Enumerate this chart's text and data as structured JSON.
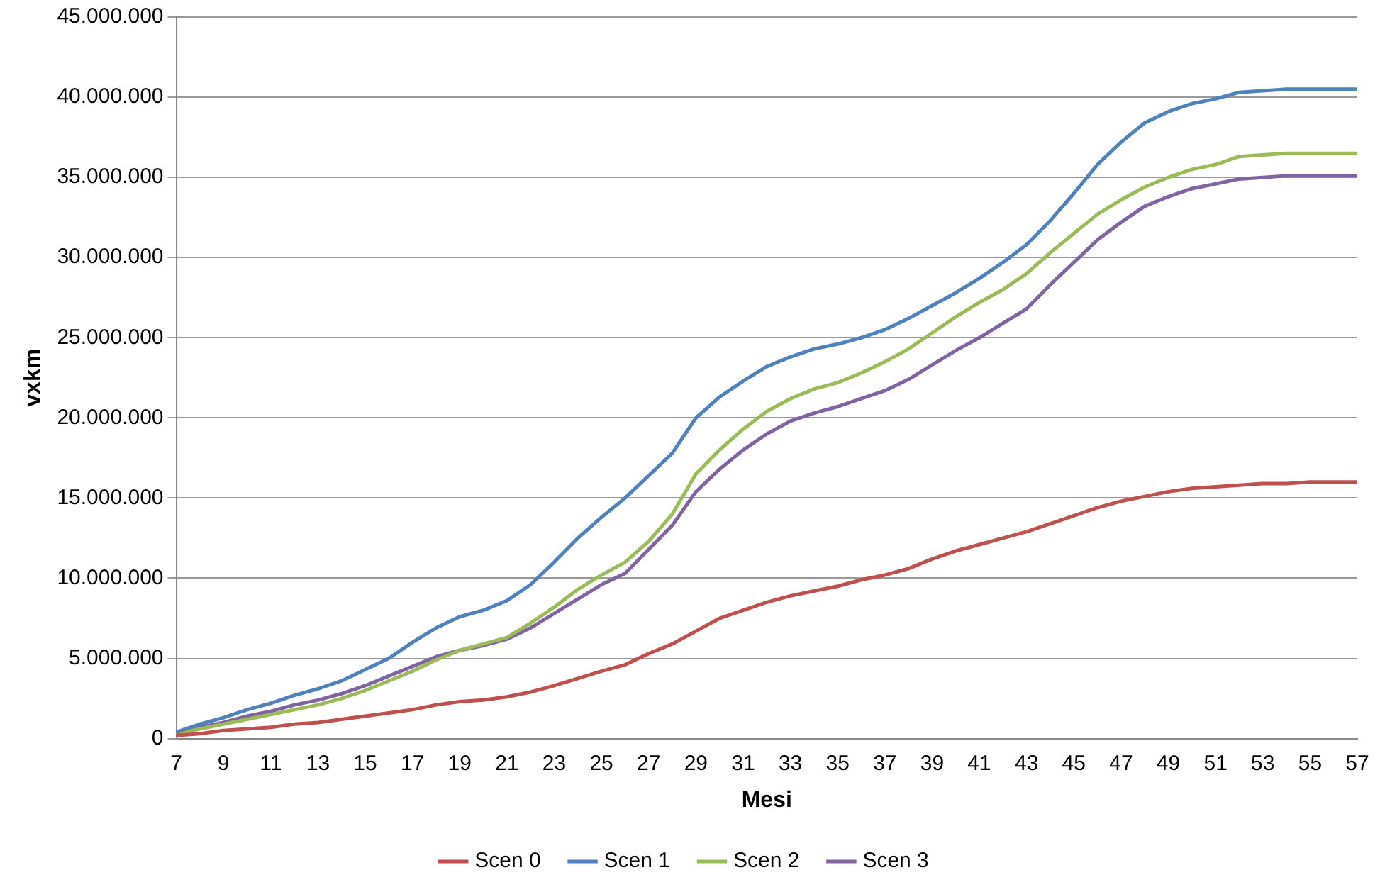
{
  "chart_data": {
    "type": "line",
    "xlabel": "Mesi",
    "ylabel": "vxkm",
    "categories": [
      "7",
      null,
      "9",
      null,
      "11",
      null,
      "13",
      null,
      "15",
      null,
      "17",
      null,
      "19",
      null,
      "21",
      null,
      "23",
      null,
      "25",
      null,
      "27",
      null,
      "29",
      null,
      "31",
      null,
      "33",
      null,
      "35",
      null,
      "37",
      null,
      "39",
      null,
      "41",
      null,
      "43",
      null,
      "45",
      null,
      "47",
      null,
      "49",
      null,
      "51",
      null,
      "53",
      null,
      "55",
      null,
      "57"
    ],
    "ylim": [
      0,
      45000000
    ],
    "yticks": [
      {
        "value": 0,
        "label": "0"
      },
      {
        "value": 5000000,
        "label": "5.000.000"
      },
      {
        "value": 10000000,
        "label": "10.000.000"
      },
      {
        "value": 15000000,
        "label": "15.000.000"
      },
      {
        "value": 20000000,
        "label": "20.000.000"
      },
      {
        "value": 25000000,
        "label": "25.000.000"
      },
      {
        "value": 30000000,
        "label": "30.000.000"
      },
      {
        "value": 35000000,
        "label": "35.000.000"
      },
      {
        "value": 40000000,
        "label": "40.000.000"
      },
      {
        "value": 45000000,
        "label": "45.000.000"
      }
    ],
    "grid": "y",
    "legend": "bottom",
    "marker": "none",
    "line_style": "solid",
    "series": [
      {
        "name": "Scen 0",
        "color": "#c0504d",
        "values": [
          200000,
          300000,
          500000,
          600000,
          700000,
          900000,
          1000000,
          1200000,
          1400000,
          1600000,
          1800000,
          2100000,
          2300000,
          2400000,
          2600000,
          2900000,
          3300000,
          3750000,
          4200000,
          4600000,
          5300000,
          5900000,
          6700000,
          7500000,
          8000000,
          8500000,
          8900000,
          9200000,
          9500000,
          9900000,
          10200000,
          10600000,
          11200000,
          11700000,
          12100000,
          12500000,
          12900000,
          13400000,
          13900000,
          14400000,
          14800000,
          15100000,
          15400000,
          15600000,
          15700000,
          15800000,
          15900000,
          15900000,
          16000000,
          16000000,
          16000000
        ]
      },
      {
        "name": "Scen 1",
        "color": "#4f81bd",
        "values": [
          400000,
          900000,
          1300000,
          1800000,
          2200000,
          2700000,
          3100000,
          3600000,
          4300000,
          5000000,
          6000000,
          6900000,
          7600000,
          8000000,
          8600000,
          9600000,
          11000000,
          12500000,
          13800000,
          15000000,
          16400000,
          17800000,
          20000000,
          21300000,
          22300000,
          23200000,
          23800000,
          24300000,
          24600000,
          25000000,
          25500000,
          26200000,
          27000000,
          27800000,
          28700000,
          29700000,
          30800000,
          32300000,
          34000000,
          35800000,
          37200000,
          38400000,
          39100000,
          39600000,
          39900000,
          40300000,
          40400000,
          40500000,
          40500000,
          40500000,
          40500000
        ]
      },
      {
        "name": "Scen 2",
        "color": "#9bbb59",
        "values": [
          300000,
          600000,
          900000,
          1200000,
          1500000,
          1800000,
          2100000,
          2500000,
          3000000,
          3600000,
          4200000,
          4900000,
          5500000,
          5900000,
          6300000,
          7200000,
          8200000,
          9300000,
          10200000,
          11000000,
          12300000,
          14000000,
          16500000,
          18000000,
          19300000,
          20400000,
          21200000,
          21800000,
          22200000,
          22800000,
          23500000,
          24300000,
          25300000,
          26300000,
          27200000,
          28000000,
          29000000,
          30300000,
          31500000,
          32700000,
          33600000,
          34400000,
          35000000,
          35500000,
          35800000,
          36300000,
          36400000,
          36500000,
          36500000,
          36500000,
          36500000
        ]
      },
      {
        "name": "Scen 3",
        "color": "#8064a2",
        "values": [
          300000,
          700000,
          1000000,
          1400000,
          1700000,
          2100000,
          2400000,
          2800000,
          3300000,
          3900000,
          4500000,
          5100000,
          5500000,
          5800000,
          6200000,
          6900000,
          7800000,
          8700000,
          9600000,
          10300000,
          11800000,
          13300000,
          15400000,
          16800000,
          18000000,
          19000000,
          19800000,
          20300000,
          20700000,
          21200000,
          21700000,
          22400000,
          23300000,
          24200000,
          25000000,
          25900000,
          26800000,
          28300000,
          29700000,
          31100000,
          32200000,
          33200000,
          33800000,
          34300000,
          34600000,
          34900000,
          35000000,
          35100000,
          35100000,
          35100000,
          35100000
        ]
      }
    ]
  }
}
